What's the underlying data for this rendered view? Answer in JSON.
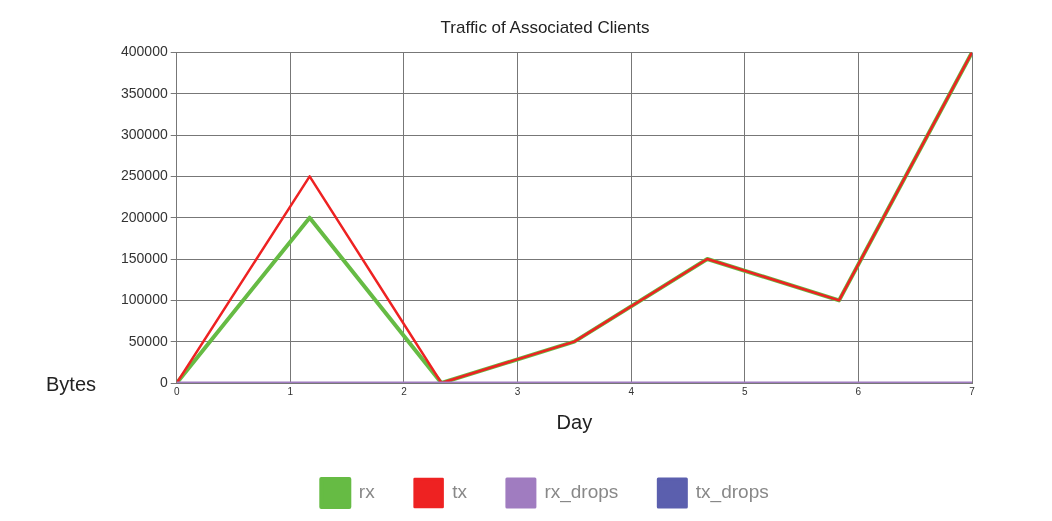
{
  "chart_data": {
    "type": "line",
    "title": "Traffic of Associated Clients",
    "xlabel": "Day",
    "ylabel": "Bytes",
    "x": [
      0,
      1.17,
      2.33,
      3.5,
      4.67,
      5.83,
      7
    ],
    "xlim": [
      0,
      7
    ],
    "xticks": [
      0,
      1,
      2,
      3,
      4,
      5,
      6,
      7
    ],
    "ylim": [
      0,
      400000
    ],
    "yticks": [
      0,
      50000,
      100000,
      150000,
      200000,
      250000,
      300000,
      350000,
      400000
    ],
    "grid": true,
    "legend": "bottom",
    "marker": "none",
    "line_style": "solid",
    "series": [
      {
        "name": "rx",
        "color": "#66bb44",
        "values": [
          0,
          200000,
          0,
          50000,
          150000,
          100000,
          400000
        ]
      },
      {
        "name": "tx",
        "color": "#ee2222",
        "values": [
          0,
          250000,
          0,
          50000,
          150000,
          100000,
          400000
        ]
      },
      {
        "name": "rx_drops",
        "color": "#a07cc0",
        "values": [
          0,
          0,
          0,
          0,
          0,
          0,
          0
        ]
      },
      {
        "name": "tx_drops",
        "color": "#5b5fae",
        "values": [
          null,
          null,
          null,
          null,
          null,
          null,
          null
        ]
      }
    ]
  }
}
